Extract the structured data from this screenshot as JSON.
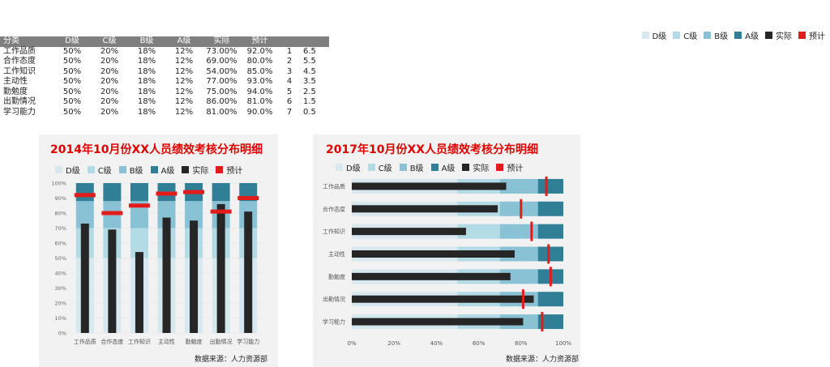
{
  "table": {
    "headers": [
      "分类",
      "D级",
      "C级",
      "B级",
      "A级",
      "实际",
      "预计",
      "",
      ""
    ],
    "rows": [
      [
        "工作品质",
        "50%",
        "20%",
        "18%",
        "12%",
        "73.00%",
        "92.0%",
        "1",
        "6.5"
      ],
      [
        "合作态度",
        "50%",
        "20%",
        "18%",
        "12%",
        "69.00%",
        "80.0%",
        "2",
        "5.5"
      ],
      [
        "工作知识",
        "50%",
        "20%",
        "18%",
        "12%",
        "54.00%",
        "85.0%",
        "3",
        "4.5"
      ],
      [
        "主动性",
        "50%",
        "20%",
        "18%",
        "12%",
        "77.00%",
        "93.0%",
        "4",
        "3.5"
      ],
      [
        "勤勉度",
        "50%",
        "20%",
        "18%",
        "12%",
        "75.00%",
        "94.0%",
        "5",
        "2.5"
      ],
      [
        "出勤情况",
        "50%",
        "20%",
        "18%",
        "12%",
        "86.00%",
        "81.0%",
        "6",
        "1.5"
      ],
      [
        "学习能力",
        "50%",
        "20%",
        "18%",
        "12%",
        "81.00%",
        "90.0%",
        "7",
        "0.5"
      ]
    ]
  },
  "legend": {
    "items": [
      {
        "label": "D级",
        "color": "#d7e8ef"
      },
      {
        "label": "C级",
        "color": "#b3dbe6"
      },
      {
        "label": "B级",
        "color": "#89c2d4"
      },
      {
        "label": "A级",
        "color": "#317f96"
      },
      {
        "label": "实际",
        "color": "#262626"
      },
      {
        "label": "预计",
        "color": "#e41b1b"
      }
    ]
  },
  "chart_data": [
    {
      "type": "bar",
      "orientation": "vertical",
      "title": "2014年10月份XX人员绩效考核分布明细",
      "source": "数据来源：人力资源部",
      "categories": [
        "工作品质",
        "合作态度",
        "工作知识",
        "主动性",
        "勤勉度",
        "出勤情况",
        "学习能力"
      ],
      "bands": [
        {
          "name": "D级",
          "values": [
            50,
            50,
            50,
            50,
            50,
            50,
            50
          ]
        },
        {
          "name": "C级",
          "values": [
            20,
            20,
            20,
            20,
            20,
            20,
            20
          ]
        },
        {
          "name": "B级",
          "values": [
            18,
            18,
            18,
            18,
            18,
            18,
            18
          ]
        },
        {
          "name": "A级",
          "values": [
            12,
            12,
            12,
            12,
            12,
            12,
            12
          ]
        }
      ],
      "series": [
        {
          "name": "实际",
          "values": [
            73,
            69,
            54,
            77,
            75,
            86,
            81
          ]
        },
        {
          "name": "预计",
          "values": [
            92,
            80,
            85,
            93,
            94,
            81,
            90
          ]
        }
      ],
      "yticks": [
        "0%",
        "10%",
        "20%",
        "30%",
        "40%",
        "50%",
        "60%",
        "70%",
        "80%",
        "90%",
        "100%"
      ],
      "ylim": [
        0,
        100
      ],
      "legend_position": "top"
    },
    {
      "type": "bar",
      "orientation": "horizontal",
      "title": "2017年10月份XX人员绩效考核分布明细",
      "source": "数据来源：人力资源部",
      "categories": [
        "工作品质",
        "合作态度",
        "工作知识",
        "主动性",
        "勤勉度",
        "出勤情况",
        "学习能力"
      ],
      "bands": [
        {
          "name": "D级",
          "values": [
            50,
            50,
            50,
            50,
            50,
            50,
            50
          ]
        },
        {
          "name": "C级",
          "values": [
            20,
            20,
            20,
            20,
            20,
            20,
            20
          ]
        },
        {
          "name": "B级",
          "values": [
            18,
            18,
            18,
            18,
            18,
            18,
            18
          ]
        },
        {
          "name": "A级",
          "values": [
            12,
            12,
            12,
            12,
            12,
            12,
            12
          ]
        }
      ],
      "series": [
        {
          "name": "实际",
          "values": [
            73,
            69,
            54,
            77,
            75,
            86,
            81
          ]
        },
        {
          "name": "预计",
          "values": [
            92,
            80,
            85,
            93,
            94,
            81,
            90
          ]
        }
      ],
      "xticks": [
        "0%",
        "20%",
        "40%",
        "60%",
        "80%",
        "100%"
      ],
      "xlim": [
        0,
        100
      ],
      "legend_position": "top"
    }
  ]
}
